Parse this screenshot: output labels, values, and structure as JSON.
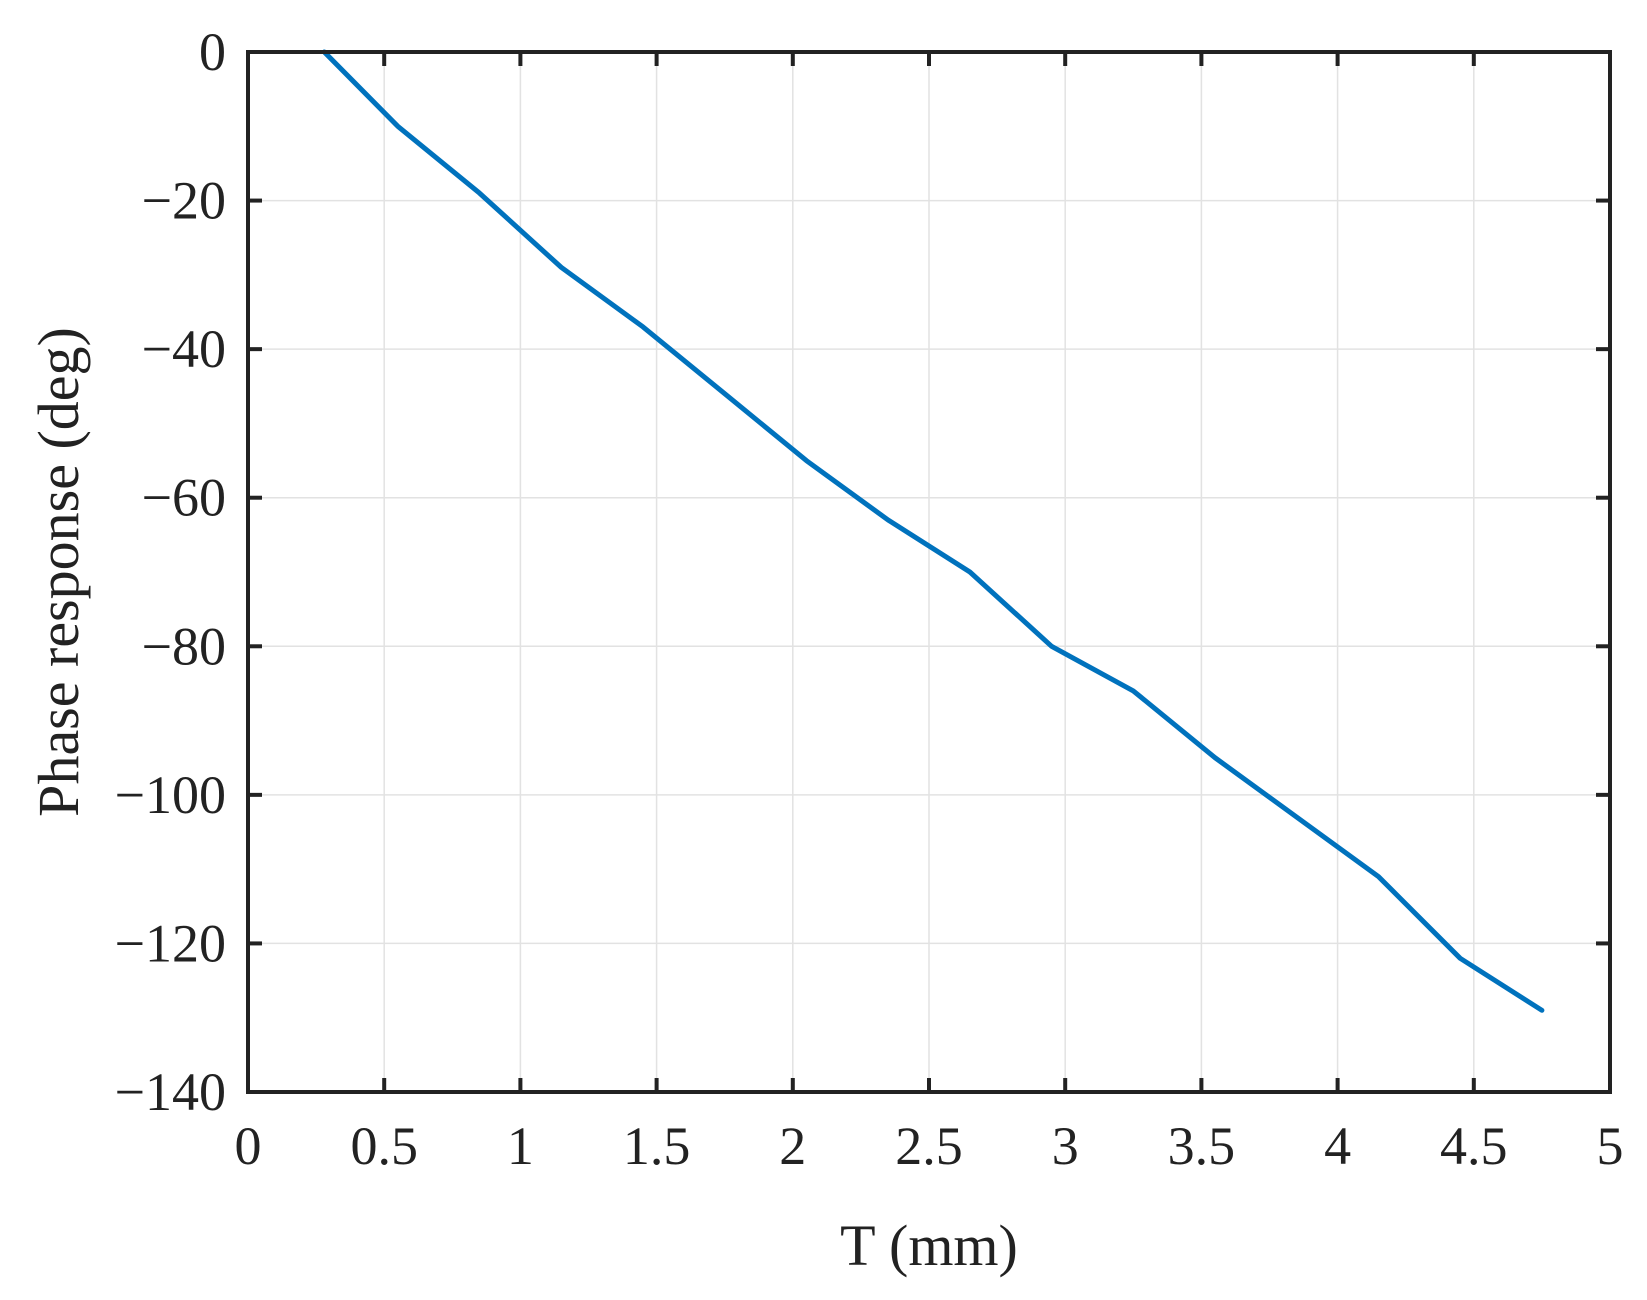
{
  "chart_data": {
    "type": "line",
    "title": "",
    "xlabel": "T (mm)",
    "ylabel": "Phase response (deg)",
    "xlim": [
      0,
      5
    ],
    "ylim": [
      -140,
      0
    ],
    "x_ticks": [
      0,
      0.5,
      1,
      1.5,
      2,
      2.5,
      3,
      3.5,
      4,
      4.5,
      5
    ],
    "x_tick_labels": [
      "0",
      "0.5",
      "1",
      "1.5",
      "2",
      "2.5",
      "3",
      "3.5",
      "4",
      "4.5",
      "5"
    ],
    "y_ticks": [
      0,
      -20,
      -40,
      -60,
      -80,
      -100,
      -120,
      -140
    ],
    "y_tick_labels": [
      "0",
      "−20",
      "−40",
      "−60",
      "−80",
      "−100",
      "−120",
      "−140"
    ],
    "grid": true,
    "legend": "none",
    "series": [
      {
        "color": "#0072BD",
        "x": [
          0.28,
          0.55,
          0.85,
          1.15,
          1.45,
          1.75,
          2.05,
          2.35,
          2.65,
          2.95,
          3.25,
          3.55,
          3.85,
          4.15,
          4.45,
          4.75
        ],
        "y": [
          0,
          -10,
          -19,
          -29,
          -37,
          -46,
          -55,
          -63,
          -70,
          -80,
          -86,
          -95,
          -103,
          -111,
          -122,
          -129
        ]
      }
    ]
  }
}
